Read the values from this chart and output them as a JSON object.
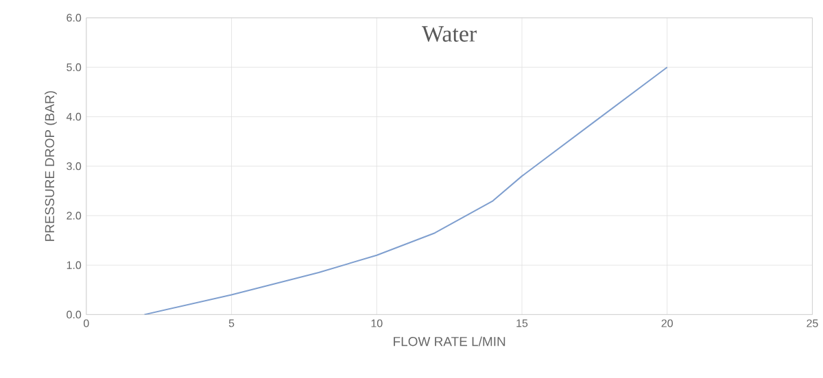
{
  "chart_data": {
    "type": "line",
    "title": "Water",
    "xlabel": "FLOW RATE L/MIN",
    "ylabel": "PRESSURE DROP (BAR)",
    "x": [
      2,
      5,
      8,
      10,
      12,
      14,
      15,
      17.5,
      20
    ],
    "series": [
      {
        "color": "#7f9fcf",
        "values": [
          0,
          0.4,
          0.85,
          1.2,
          1.65,
          2.3,
          2.8,
          3.9,
          5.0
        ]
      }
    ],
    "xlim": [
      0,
      25
    ],
    "xticks": [
      0,
      5,
      10,
      15,
      20,
      25
    ],
    "ylim": [
      0,
      6
    ],
    "yticks": [
      {
        "value": 0,
        "label": "0.0"
      },
      {
        "value": 1,
        "label": "1.0"
      },
      {
        "value": 2,
        "label": "2.0"
      },
      {
        "value": 3,
        "label": "3.0"
      },
      {
        "value": 4,
        "label": "4.0"
      },
      {
        "value": 5,
        "label": "5.0"
      },
      {
        "value": 6,
        "label": "6.0"
      }
    ],
    "grid": true,
    "marker": "none",
    "line_style": "solid"
  }
}
